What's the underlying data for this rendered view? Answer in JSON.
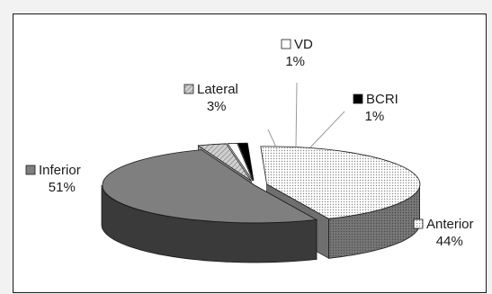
{
  "chart_data": {
    "type": "pie",
    "style": "3d-exploded",
    "title": "",
    "slices": [
      {
        "label": "Anterior",
        "value": 44,
        "display": "44%",
        "fill": "dots",
        "color": "#d9d9d9",
        "exploded": true
      },
      {
        "label": "Inferior",
        "value": 51,
        "display": "51%",
        "fill": "solid",
        "color": "#7f7f7f",
        "exploded": false
      },
      {
        "label": "Lateral",
        "value": 3,
        "display": "3%",
        "fill": "hatch",
        "color": "#bfbfbf",
        "exploded": true
      },
      {
        "label": "VD",
        "value": 1,
        "display": "1%",
        "fill": "solid",
        "color": "#ffffff",
        "exploded": true
      },
      {
        "label": "BCRI",
        "value": 1,
        "display": "1%",
        "fill": "solid",
        "color": "#000000",
        "exploded": true
      }
    ],
    "legend": "data labels with key swatch next to each slice"
  }
}
